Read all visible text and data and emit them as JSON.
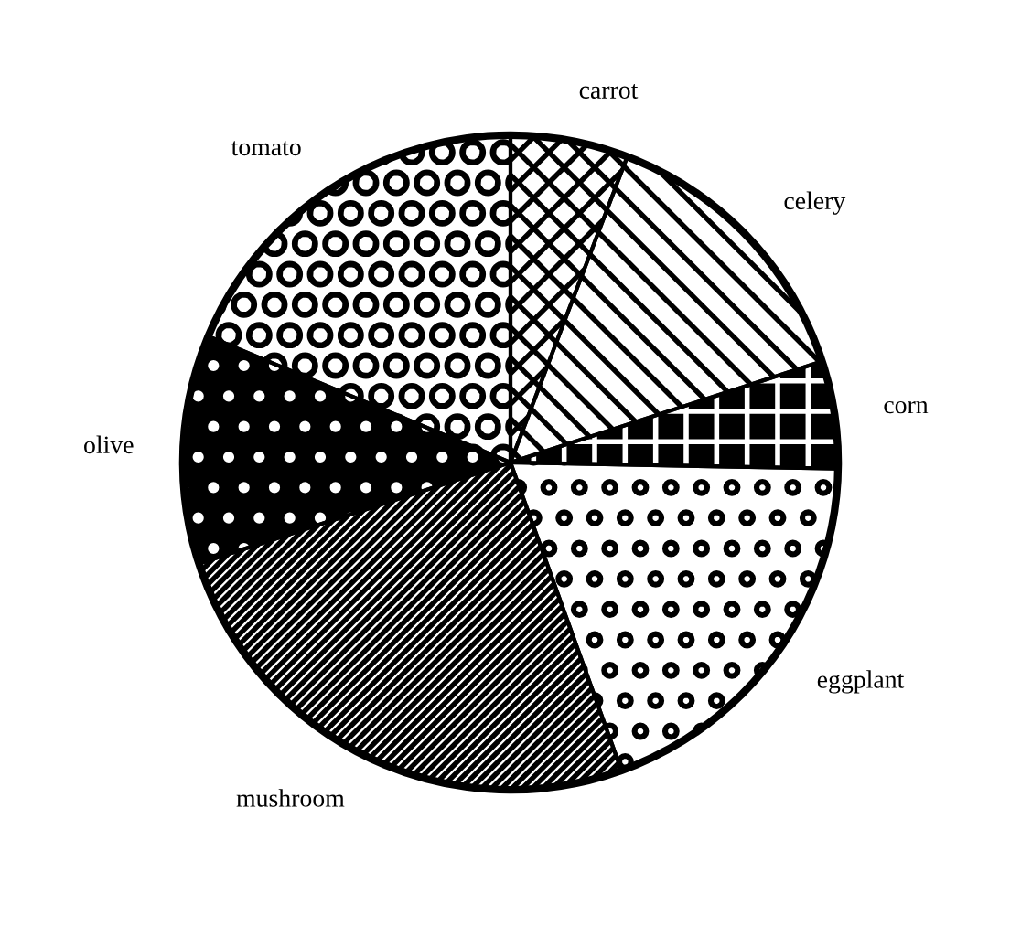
{
  "chart_data": {
    "type": "pie",
    "categories": [
      "carrot",
      "celery",
      "corn",
      "eggplant",
      "mushroom",
      "olive",
      "tomato"
    ],
    "values": [
      5.8,
      14.2,
      5.3,
      19.2,
      25.5,
      11.3,
      18.7
    ],
    "colors": [
      "#ffffff",
      "#ffffff",
      "#000000",
      "#ffffff",
      "#ffffff",
      "#000000",
      "#ffffff"
    ]
  }
}
